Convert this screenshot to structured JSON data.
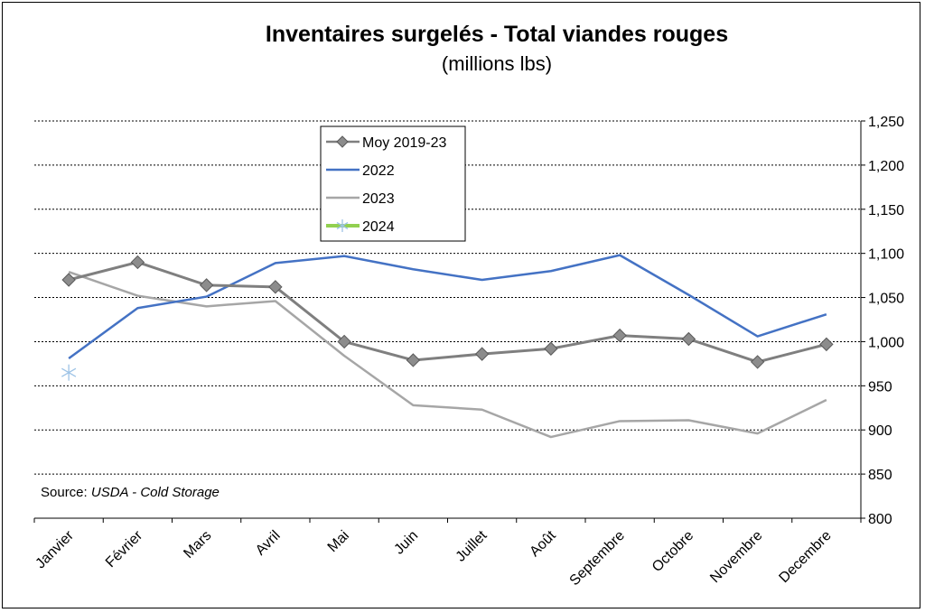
{
  "chart_data": {
    "type": "line",
    "title": "Inventaires surgelés - Total viandes rouges",
    "subtitle": "(millions lbs)",
    "categories": [
      "Janvier",
      "Février",
      "Mars",
      "Avril",
      "Mai",
      "Juin",
      "Juillet",
      "Août",
      "Septembre",
      "Octobre",
      "Novembre",
      "Decembre"
    ],
    "ylim": [
      800,
      1250
    ],
    "yticks": [
      800,
      850,
      900,
      950,
      1000,
      1050,
      1100,
      1150,
      1200,
      1250
    ],
    "ytick_labels": [
      "800",
      "850",
      "900",
      "950",
      "1,000",
      "1,050",
      "1,100",
      "1,150",
      "1,200",
      "1,250"
    ],
    "grid": true,
    "legend_position": "top-left",
    "source": {
      "prefix": "Source: ",
      "text": "USDA - Cold Storage"
    },
    "series": [
      {
        "name": "Moy 2019-23",
        "color": "#7f7f7f",
        "marker": "diamond",
        "values": [
          1070,
          1090,
          1064,
          1062,
          1000,
          979,
          986,
          992,
          1007,
          1003,
          977,
          997
        ]
      },
      {
        "name": "2022",
        "color": "#4472c4",
        "marker": "none",
        "values": [
          981,
          1038,
          1051,
          1089,
          1097,
          1082,
          1070,
          1080,
          1098,
          1053,
          1006,
          1031
        ]
      },
      {
        "name": "2023",
        "color": "#a6a6a6",
        "marker": "none",
        "values": [
          1079,
          1052,
          1040,
          1046,
          984,
          928,
          923,
          892,
          910,
          911,
          896,
          934
        ]
      },
      {
        "name": "2024",
        "color": "#92d050",
        "marker": "asterisk",
        "marker_color": "#9dc3e6",
        "values": [
          965,
          null,
          null,
          null,
          null,
          null,
          null,
          null,
          null,
          null,
          null,
          null
        ]
      }
    ]
  }
}
